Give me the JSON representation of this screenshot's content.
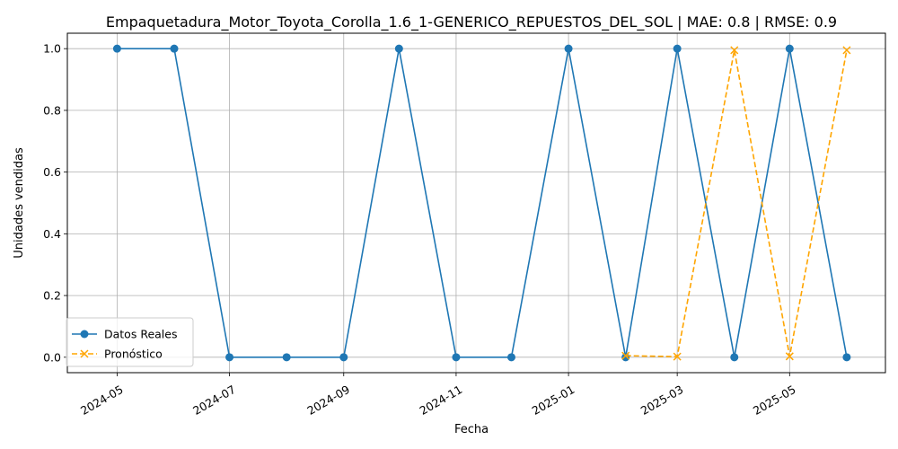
{
  "chart_data": {
    "type": "line",
    "title": "Empaquetadura_Motor_Toyota_Corolla_1.6_1-GENERICO_REPUESTOS_DEL_SOL | MAE: 0.8 | RMSE: 0.9",
    "xlabel": "Fecha",
    "ylabel": "Unidades vendidas",
    "xlim": [
      "2024-04-04",
      "2025-06-22"
    ],
    "ylim": [
      -0.05,
      1.05
    ],
    "x_ticks": [
      "2024-05-01",
      "2024-07-01",
      "2024-09-01",
      "2024-11-01",
      "2025-01-01",
      "2025-03-01",
      "2025-05-01"
    ],
    "x_tick_labels": [
      "2024-05",
      "2024-07",
      "2024-09",
      "2024-11",
      "2025-01",
      "2025-03",
      "2025-05"
    ],
    "y_ticks": [
      0.0,
      0.2,
      0.4,
      0.6,
      0.8,
      1.0
    ],
    "y_tick_labels": [
      "0.0",
      "0.2",
      "0.4",
      "0.6",
      "0.8",
      "1.0"
    ],
    "grid": true,
    "legend_position": "lower-left",
    "series": [
      {
        "name": "Datos Reales",
        "color": "#1f77b4",
        "line_style": "solid",
        "marker": "circle",
        "points": [
          {
            "x": "2024-05-01",
            "y": 1
          },
          {
            "x": "2024-06-01",
            "y": 1
          },
          {
            "x": "2024-07-01",
            "y": 0
          },
          {
            "x": "2024-08-01",
            "y": 0
          },
          {
            "x": "2024-09-01",
            "y": 0
          },
          {
            "x": "2024-10-01",
            "y": 1
          },
          {
            "x": "2024-11-01",
            "y": 0
          },
          {
            "x": "2024-12-01",
            "y": 0
          },
          {
            "x": "2025-01-01",
            "y": 1
          },
          {
            "x": "2025-02-01",
            "y": 0
          },
          {
            "x": "2025-03-01",
            "y": 1
          },
          {
            "x": "2025-04-01",
            "y": 0
          },
          {
            "x": "2025-05-01",
            "y": 1
          },
          {
            "x": "2025-06-01",
            "y": 0
          }
        ]
      },
      {
        "name": "Pronóstico",
        "color": "#ffa500",
        "line_style": "dashed",
        "marker": "x",
        "points": [
          {
            "x": "2025-02-01",
            "y": 0.005
          },
          {
            "x": "2025-03-01",
            "y": 0.002
          },
          {
            "x": "2025-04-01",
            "y": 0.995
          },
          {
            "x": "2025-05-01",
            "y": 0.003
          },
          {
            "x": "2025-06-01",
            "y": 0.995
          }
        ]
      }
    ]
  }
}
